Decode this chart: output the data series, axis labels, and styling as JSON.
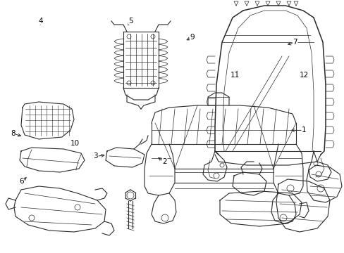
{
  "bg_color": "#ffffff",
  "line_color": "#2a2a2a",
  "fig_width": 4.89,
  "fig_height": 3.6,
  "dpi": 100,
  "label_positions": {
    "1": [
      0.882,
      0.515,
      0.838,
      0.515
    ],
    "2": [
      0.478,
      0.64,
      0.453,
      0.618
    ],
    "3": [
      0.278,
      0.618,
      0.31,
      0.612
    ],
    "4": [
      0.118,
      0.082,
      0.118,
      0.108
    ],
    "5": [
      0.38,
      0.082,
      0.368,
      0.108
    ],
    "6": [
      0.062,
      0.718,
      0.082,
      0.695
    ],
    "7": [
      0.856,
      0.168,
      0.828,
      0.178
    ],
    "8": [
      0.038,
      0.528,
      0.068,
      0.54
    ],
    "9": [
      0.558,
      0.148,
      0.535,
      0.162
    ],
    "10": [
      0.218,
      0.568,
      0.232,
      0.552
    ],
    "11": [
      0.682,
      0.298,
      0.692,
      0.272
    ],
    "12": [
      0.882,
      0.298,
      0.862,
      0.295
    ]
  }
}
